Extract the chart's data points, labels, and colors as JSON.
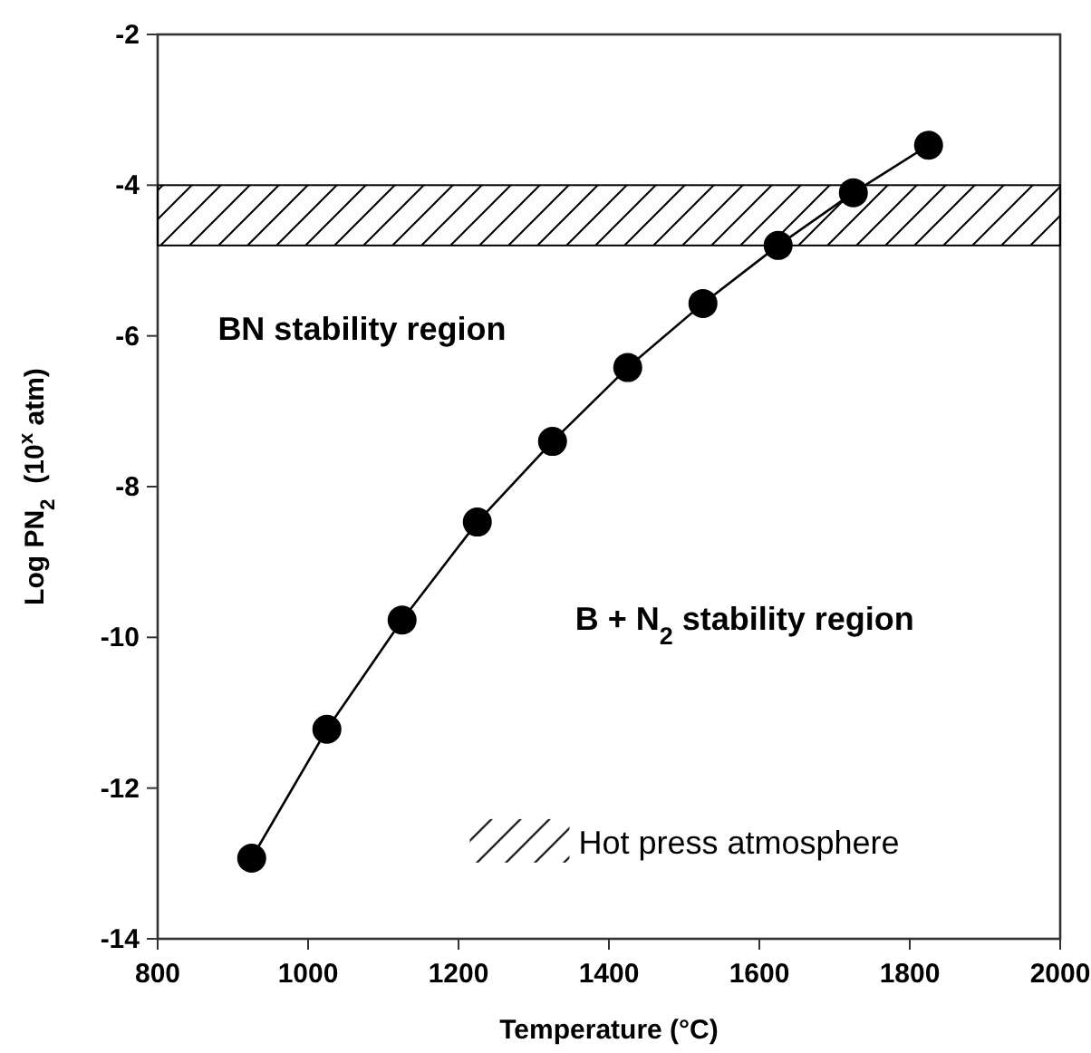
{
  "chart_data": {
    "type": "line",
    "xlabel": "Temperature (°C)",
    "ylabel": "Log PN$_{2}$  (10$^{x}$ atm)",
    "x": [
      925,
      1025,
      1125,
      1225,
      1325,
      1425,
      1525,
      1625,
      1725,
      1825
    ],
    "series": [
      {
        "color": "#000000",
        "values": [
          -12.93,
          -11.22,
          -9.77,
          -8.47,
          -7.4,
          -6.42,
          -5.57,
          -4.8,
          -4.1,
          -3.47
        ]
      }
    ],
    "xlim": [
      800,
      2000
    ],
    "xticks": [
      800,
      1000,
      1200,
      1400,
      1600,
      1800,
      2000
    ],
    "ylim": [
      -14,
      -2
    ],
    "yticks": [
      -14,
      -12,
      -10,
      -8,
      -6,
      -4,
      -2
    ],
    "bands": [
      {
        "axis": "y",
        "from": -4.8,
        "to": -4,
        "label": "Hot press atmosphere",
        "color": "#000000"
      }
    ],
    "annotations": [
      "BN stability region",
      "B + N$_{2}$ stability region"
    ],
    "marker": "circle",
    "line_style": "solid",
    "grid": false,
    "legend": "bottom right"
  }
}
